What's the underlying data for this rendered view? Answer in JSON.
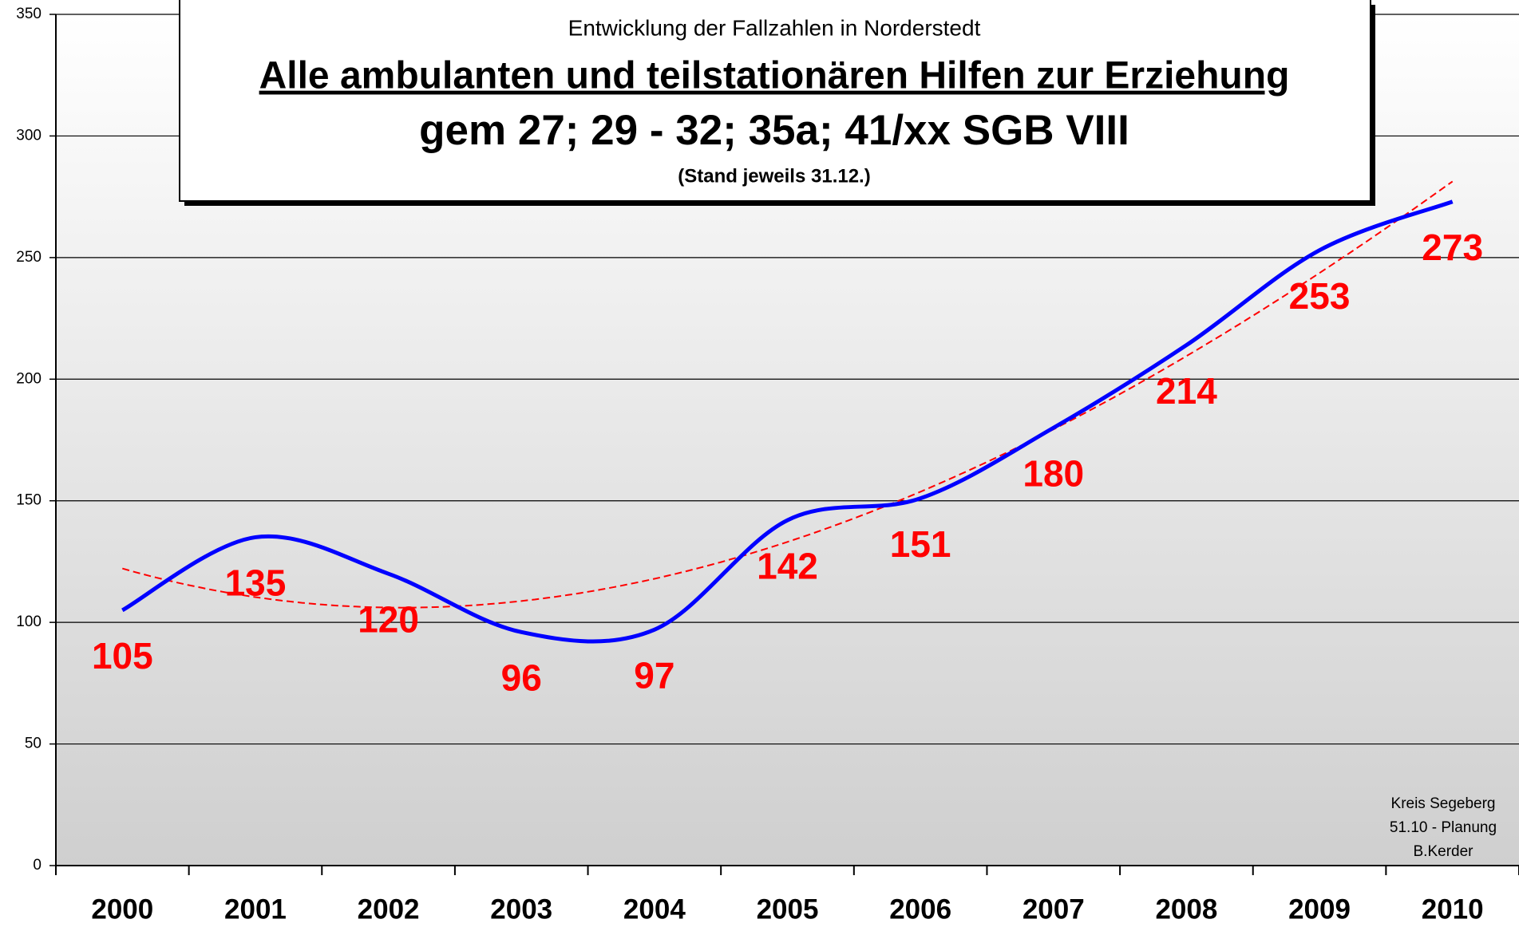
{
  "chart_data": {
    "type": "line",
    "title": "Entwicklung der Fallzahlen in Norderstedt",
    "subtitle": "Alle ambulanten und teilstationären Hilfen zur Erziehung",
    "subtitle2": "gem 27; 29 - 32; 35a; 41/xx SGB VIII",
    "note": "(Stand jeweils 31.12.)",
    "credits": [
      "Kreis Segeberg",
      "51.10 - Planung",
      "B.Kerder"
    ],
    "categories": [
      "2000",
      "2001",
      "2002",
      "2003",
      "2004",
      "2005",
      "2006",
      "2007",
      "2008",
      "2009",
      "2010"
    ],
    "values": [
      105,
      135,
      120,
      96,
      97,
      142,
      151,
      180,
      214,
      253,
      273
    ],
    "color": "#0000ff",
    "label_color": "#ff0000",
    "trendline": {
      "type": "polynomial",
      "order": 3,
      "color": "#ff0000"
    },
    "ylim": [
      0,
      350
    ],
    "yticks": [
      0,
      50,
      100,
      150,
      200,
      250,
      300,
      350
    ],
    "grid": true
  }
}
